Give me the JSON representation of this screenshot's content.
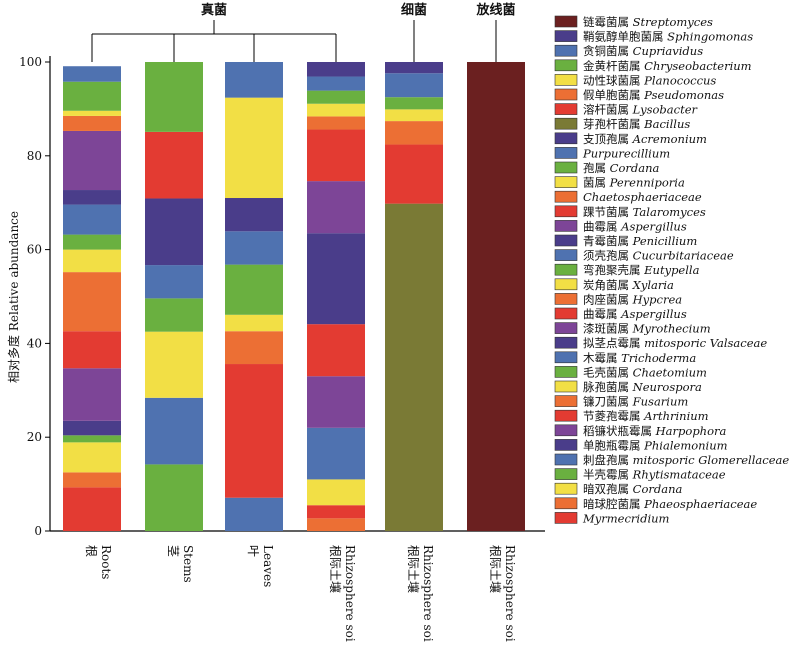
{
  "chart_data": {
    "type": "bar",
    "stacked": true,
    "ylabel": "相对多度 Relative abundance",
    "ylim": [
      0,
      100
    ],
    "yticks": [
      0,
      20,
      40,
      60,
      80,
      100
    ],
    "group_labels": [
      {
        "label": "真菌",
        "covers": [
          0,
          1,
          2,
          3
        ]
      },
      {
        "label": "细菌",
        "covers": [
          4
        ]
      },
      {
        "label": "放线菌",
        "covers": [
          5
        ]
      }
    ],
    "categories": [
      {
        "cn": "根",
        "en": "Roots"
      },
      {
        "cn": "茎",
        "en": "Stems"
      },
      {
        "cn": "叶",
        "en": "Leaves"
      },
      {
        "cn": "根际土壤",
        "en": "Rhizosphere soil"
      },
      {
        "cn": "根际土壤",
        "en": "Rhizosphere soil"
      },
      {
        "cn": "根际土壤",
        "en": "Rhizosphere soil"
      }
    ],
    "legend": [
      {
        "cn": "链霉菌属",
        "latin": "Streptomyces",
        "color": "#6b2020"
      },
      {
        "cn": "鞘氨醇单胞菌属",
        "latin": "Sphingomonas",
        "color": "#4a3d8a"
      },
      {
        "cn": "贪铜菌属",
        "latin": "Cupriavidus",
        "color": "#4f72b0"
      },
      {
        "cn": "金黄杆菌属",
        "latin": "Chryseobacterium",
        "color": "#6ab040"
      },
      {
        "cn": "动性球菌属",
        "latin": "Planococcus",
        "color": "#f2df45"
      },
      {
        "cn": "假单胞菌属",
        "latin": "Pseudomonas",
        "color": "#ec6f34"
      },
      {
        "cn": "溶杆菌属",
        "latin": "Lysobacter",
        "color": "#e33b32"
      },
      {
        "cn": "芽孢杆菌属",
        "latin": "Bacillus",
        "color": "#7a7a35"
      },
      {
        "cn": "支顶孢属",
        "latin": "Acremonium",
        "color": "#4a3d8a"
      },
      {
        "cn": "",
        "latin": "Purpurecillium",
        "color": "#4f72b0"
      },
      {
        "cn": "孢属",
        "latin": "Cordana",
        "color": "#6ab040"
      },
      {
        "cn": "菌属",
        "latin": "Perenniporia",
        "color": "#f2df45"
      },
      {
        "cn": "",
        "latin": "Chaetosphaeriaceae",
        "color": "#ec6f34"
      },
      {
        "cn": "踝节菌属",
        "latin": "Talaromyces",
        "color": "#e33b32"
      },
      {
        "cn": "曲霉属",
        "latin": "Aspergillus",
        "color": "#7d4597"
      },
      {
        "cn": "青霉菌属",
        "latin": "Penicillium",
        "color": "#4a3d8a"
      },
      {
        "cn": "须壳孢属",
        "latin": "Cucurbitariaceae",
        "color": "#4f72b0"
      },
      {
        "cn": "弯孢聚壳属",
        "latin": "Eutypella",
        "color": "#6ab040"
      },
      {
        "cn": "炭角菌属",
        "latin": "Xylaria",
        "color": "#f2df45"
      },
      {
        "cn": "肉座菌属",
        "latin": "Hypcrea",
        "color": "#ec6f34"
      },
      {
        "cn": "曲霉属",
        "latin": "Aspergillus",
        "color": "#e33b32"
      },
      {
        "cn": "漆斑菌属",
        "latin": "Myrothecium",
        "color": "#7d4597"
      },
      {
        "cn": "拟茎点霉属",
        "latin": "mitosporic Valsaceae",
        "color": "#4a3d8a"
      },
      {
        "cn": "木霉属",
        "latin": "Trichoderma",
        "color": "#4f72b0"
      },
      {
        "cn": "毛壳菌属",
        "latin": "Chaetomium",
        "color": "#6ab040"
      },
      {
        "cn": "脉孢菌属",
        "latin": "Neurospora",
        "color": "#f2df45"
      },
      {
        "cn": "镰刀菌属",
        "latin": "Fusarium",
        "color": "#ec6f34"
      },
      {
        "cn": "节菱孢霉属",
        "latin": "Arthrinium",
        "color": "#e33b32"
      },
      {
        "cn": "稻镰状瓶霉属",
        "latin": "Harpophora",
        "color": "#7d4597"
      },
      {
        "cn": "单胞瓶霉属",
        "latin": "Phialemonium",
        "color": "#4a3d8a"
      },
      {
        "cn": "刺盘孢属",
        "latin": "mitosporic Glomerellaceae",
        "color": "#4f72b0"
      },
      {
        "cn": "半壳霉属",
        "latin": "Rhytismataceae",
        "color": "#6ab040"
      },
      {
        "cn": "暗双孢属",
        "latin": "Cordana",
        "color": "#f2df45"
      },
      {
        "cn": "暗球腔菌属",
        "latin": "Phaeosphaeriaceae",
        "color": "#ec6f34"
      },
      {
        "cn": "",
        "latin": "Myrmecridium",
        "color": "#e33b32"
      }
    ],
    "bars": [
      {
        "segments": [
          {
            "value": 9.3,
            "color": "#e33b32"
          },
          {
            "value": 3.2,
            "color": "#ec6f34"
          },
          {
            "value": 6.4,
            "color": "#f2df45"
          },
          {
            "value": 1.5,
            "color": "#6ab040"
          },
          {
            "value": 3.1,
            "color": "#4a3d8a"
          },
          {
            "value": 11.2,
            "color": "#7d4597"
          },
          {
            "value": 7.9,
            "color": "#e33b32"
          },
          {
            "value": 12.6,
            "color": "#ec6f34"
          },
          {
            "value": 4.8,
            "color": "#f2df45"
          },
          {
            "value": 3.2,
            "color": "#6ab040"
          },
          {
            "value": 6.4,
            "color": "#4f72b0"
          },
          {
            "value": 3.1,
            "color": "#4a3d8a"
          },
          {
            "value": 12.6,
            "color": "#7d4597"
          },
          {
            "value": 3.2,
            "color": "#ec6f34"
          },
          {
            "value": 1.1,
            "color": "#f2df45"
          },
          {
            "value": 6.2,
            "color": "#6ab040"
          },
          {
            "value": 3.3,
            "color": "#4f72b0"
          }
        ]
      },
      {
        "segments": [
          {
            "value": 14.2,
            "color": "#6ab040"
          },
          {
            "value": 14.2,
            "color": "#4f72b0"
          },
          {
            "value": 14.1,
            "color": "#f2df45"
          },
          {
            "value": 7.1,
            "color": "#6ab040"
          },
          {
            "value": 7.1,
            "color": "#4f72b0"
          },
          {
            "value": 14.2,
            "color": "#4a3d8a"
          },
          {
            "value": 14.2,
            "color": "#e33b32"
          },
          {
            "value": 14.9,
            "color": "#6ab040"
          }
        ]
      },
      {
        "segments": [
          {
            "value": 7.1,
            "color": "#4f72b0"
          },
          {
            "value": 28.5,
            "color": "#e33b32"
          },
          {
            "value": 7.0,
            "color": "#ec6f34"
          },
          {
            "value": 3.5,
            "color": "#f2df45"
          },
          {
            "value": 10.7,
            "color": "#6ab040"
          },
          {
            "value": 7.1,
            "color": "#4f72b0"
          },
          {
            "value": 7.1,
            "color": "#4a3d8a"
          },
          {
            "value": 21.4,
            "color": "#f2df45"
          },
          {
            "value": 7.6,
            "color": "#4f72b0"
          }
        ]
      },
      {
        "segments": [
          {
            "value": 2.7,
            "color": "#ec6f34"
          },
          {
            "value": 2.8,
            "color": "#e33b32"
          },
          {
            "value": 5.5,
            "color": "#f2df45"
          },
          {
            "value": 11.0,
            "color": "#4f72b0"
          },
          {
            "value": 11.0,
            "color": "#7d4597"
          },
          {
            "value": 11.1,
            "color": "#e33b32"
          },
          {
            "value": 19.4,
            "color": "#4a3d8a"
          },
          {
            "value": 11.1,
            "color": "#7d4597"
          },
          {
            "value": 11.0,
            "color": "#e33b32"
          },
          {
            "value": 2.8,
            "color": "#ec6f34"
          },
          {
            "value": 2.7,
            "color": "#f2df45"
          },
          {
            "value": 2.8,
            "color": "#6ab040"
          },
          {
            "value": 3.0,
            "color": "#4f72b0"
          },
          {
            "value": 3.1,
            "color": "#4a3d8a"
          }
        ]
      },
      {
        "segments": [
          {
            "value": 69.8,
            "color": "#7a7a35"
          },
          {
            "value": 12.6,
            "color": "#e33b32"
          },
          {
            "value": 5.0,
            "color": "#ec6f34"
          },
          {
            "value": 2.5,
            "color": "#f2df45"
          },
          {
            "value": 2.6,
            "color": "#6ab040"
          },
          {
            "value": 5.1,
            "color": "#4f72b0"
          },
          {
            "value": 2.4,
            "color": "#4a3d8a"
          }
        ]
      },
      {
        "segments": [
          {
            "value": 100,
            "color": "#6b2020"
          }
        ]
      }
    ]
  }
}
